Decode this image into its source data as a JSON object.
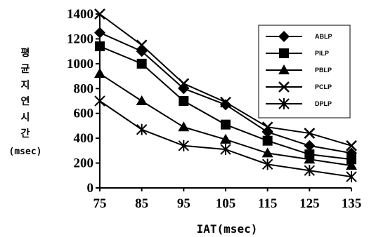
{
  "chart_data": {
    "type": "line",
    "x": [
      75,
      85,
      95,
      105,
      115,
      125,
      135
    ],
    "xlabel": "IAT(msec)",
    "ylabel_chars": [
      "평",
      "균",
      "지",
      "연",
      "시",
      "간"
    ],
    "ylabel_unit": "(msec)",
    "ylim": [
      0,
      1400
    ],
    "yticks": [
      0,
      200,
      400,
      600,
      800,
      1000,
      1200,
      1400
    ],
    "grid": false,
    "legend_position": "right",
    "series": [
      {
        "name": "ABLP",
        "marker": "diamond",
        "values": [
          1250,
          1100,
          800,
          670,
          450,
          340,
          280
        ]
      },
      {
        "name": "PILP",
        "marker": "square",
        "values": [
          1140,
          1000,
          700,
          510,
          380,
          270,
          230
        ]
      },
      {
        "name": "PBLP",
        "marker": "triangle",
        "values": [
          920,
          700,
          490,
          390,
          280,
          230,
          180
        ]
      },
      {
        "name": "PCLP",
        "marker": "x",
        "values": [
          1400,
          1150,
          840,
          690,
          490,
          440,
          340
        ]
      },
      {
        "name": "DPLP",
        "marker": "asterisk",
        "values": [
          700,
          470,
          340,
          310,
          190,
          140,
          90
        ]
      }
    ]
  }
}
